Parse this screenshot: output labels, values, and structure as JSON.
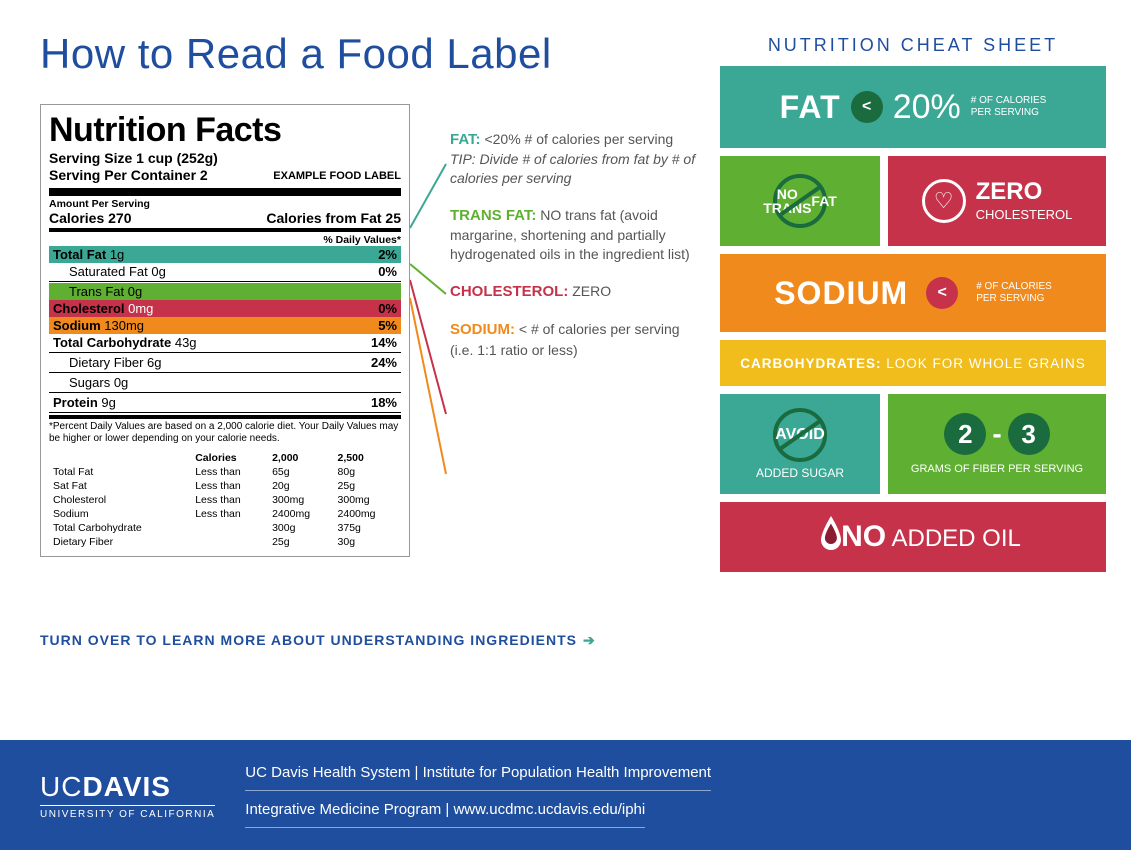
{
  "title": "How to Read a Food Label",
  "nutrition_label": {
    "heading": "Nutrition Facts",
    "serving_size": "Serving Size 1 cup (252g)",
    "servings_per": "Serving Per Container 2",
    "example_tag": "EXAMPLE FOOD LABEL",
    "amount_per_serving": "Amount Per Serving",
    "calories_label": "Calories",
    "calories": "270",
    "calories_from_fat": "Calories from Fat 25",
    "daily_value_header": "% Daily Values*",
    "rows": [
      {
        "label": "Total Fat",
        "amount": "1g",
        "dv": "2%",
        "bold": true,
        "hl": "teal"
      },
      {
        "label": "Saturated Fat",
        "amount": "0g",
        "dv": "0%",
        "indent": true
      },
      {
        "label": "Trans Fat",
        "amount": "0g",
        "dv": "",
        "indent": true,
        "hl": "green"
      },
      {
        "label": "Cholesterol",
        "amount": "0mg",
        "dv": "0%",
        "bold": true,
        "hl": "red"
      },
      {
        "label": "Sodium",
        "amount": "130mg",
        "dv": "5%",
        "bold": true,
        "hl": "orange"
      },
      {
        "label": "Total Carbohydrate",
        "amount": "43g",
        "dv": "14%",
        "bold": true
      },
      {
        "label": "Dietary Fiber",
        "amount": "6g",
        "dv": "24%",
        "indent": true
      },
      {
        "label": "Sugars",
        "amount": "0g",
        "dv": "",
        "indent": true
      },
      {
        "label": "Protein",
        "amount": "9g",
        "dv": "18%",
        "bold": true
      }
    ],
    "footnote": "*Percent Daily Values are based on a 2,000 calorie diet. Your Daily Values may be higher or lower depending on your calorie needs.",
    "table": {
      "hdr": [
        "",
        "Calories",
        "2,000",
        "2,500"
      ],
      "rows": [
        [
          "Total Fat",
          "Less than",
          "65g",
          "80g"
        ],
        [
          "Sat Fat",
          "Less than",
          "20g",
          "25g"
        ],
        [
          "Cholesterol",
          "Less than",
          "300mg",
          "300mg"
        ],
        [
          "Sodium",
          "Less than",
          "2400mg",
          "2400mg"
        ],
        [
          "Total Carbohydrate",
          "",
          "300g",
          "375g"
        ],
        [
          "Dietary Fiber",
          "",
          "25g",
          "30g"
        ]
      ]
    }
  },
  "callouts": {
    "fat": {
      "label": "FAT:",
      "body": " <20% # of calories per serving",
      "tip": "TIP: Divide # of calories from fat by # of calories per serving"
    },
    "trans": {
      "label": "TRANS FAT:",
      "body": " NO trans fat (avoid margarine, shortening and partially hydrogenated oils in the ingredient list)"
    },
    "chol": {
      "label": "CHOLESTEROL:",
      "body": " ZERO"
    },
    "sod": {
      "label": "SODIUM:",
      "body": " < # of calories per serving (i.e. 1:1 ratio or less)"
    }
  },
  "turn_over": "TURN OVER TO LEARN MORE ABOUT UNDERSTANDING INGREDIENTS",
  "cheat_header": "NUTRITION CHEAT SHEET",
  "tiles": {
    "fat": {
      "word": "FAT",
      "lt": "<",
      "pct": "20%",
      "sub1": "# OF CALORIES",
      "sub2": "PER SERVING"
    },
    "notrans": {
      "line1": "NO TRANS",
      "line2": "FAT"
    },
    "chol": {
      "word": "ZERO",
      "sub": "CHOLESTEROL"
    },
    "sodium": {
      "word": "SODIUM",
      "lt": "<",
      "sub1": "# OF CALORIES",
      "sub2": "PER SERVING"
    },
    "carbs": {
      "bold": "CARBOHYDRATES:",
      "rest": " LOOK FOR WHOLE GRAINS"
    },
    "sugar": {
      "word": "AVOID",
      "sub": "ADDED SUGAR"
    },
    "fiber": {
      "a": "2",
      "dash": "-",
      "b": "3",
      "sub": "GRAMS OF FIBER PER SERVING"
    },
    "oil": {
      "bold": "NO",
      "rest": " ADDED OIL"
    }
  },
  "footer": {
    "logo_a": "UC",
    "logo_b": "DAVIS",
    "logo_sub": "UNIVERSITY OF CALIFORNIA",
    "line1": "UC Davis Health System | Institute for Population Health Improvement",
    "line2": "Integrative Medicine Program | www.ucdmc.ucdavis.edu/iphi"
  },
  "colors": {
    "blue": "#1f4e9e",
    "teal": "#3ba896",
    "green": "#5fb032",
    "red": "#c6324a",
    "orange": "#f08a1c",
    "yellow": "#f0bd1c",
    "darkgreen": "#1a6b3e"
  }
}
